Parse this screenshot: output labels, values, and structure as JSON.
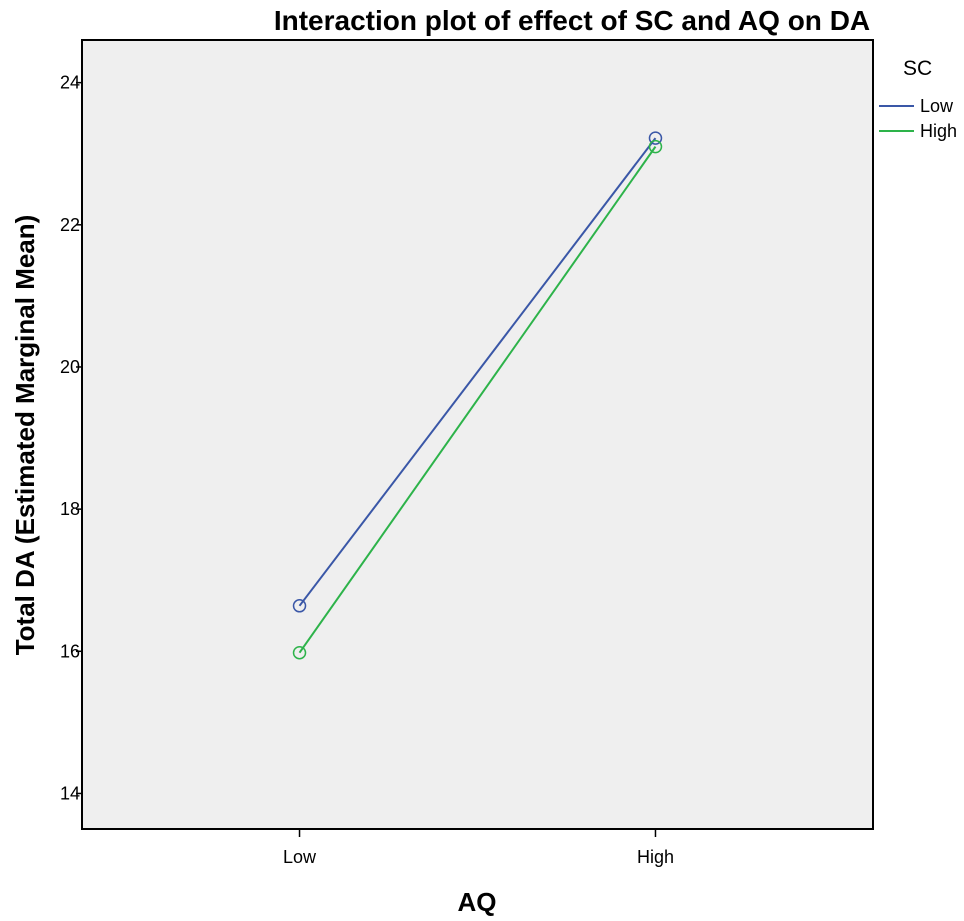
{
  "chart_data": {
    "type": "line",
    "title": "Interaction plot of effect of SC and AQ on DA",
    "xlabel": "AQ",
    "ylabel": "Total DA (Estimated Marginal Mean)",
    "categories": [
      "Low",
      "High"
    ],
    "ylim": [
      13.5,
      24.6
    ],
    "yticks": [
      14,
      16,
      18,
      20,
      22,
      24
    ],
    "grid": false,
    "legend": {
      "title": "SC",
      "placement": "right"
    },
    "series": [
      {
        "name": "Low",
        "color": "#3a57a7",
        "values": [
          16.64,
          23.22
        ]
      },
      {
        "name": "High",
        "color": "#2db34a",
        "values": [
          15.98,
          23.1
        ]
      }
    ],
    "plot_background": "#efefef",
    "marker": "open-circle"
  }
}
